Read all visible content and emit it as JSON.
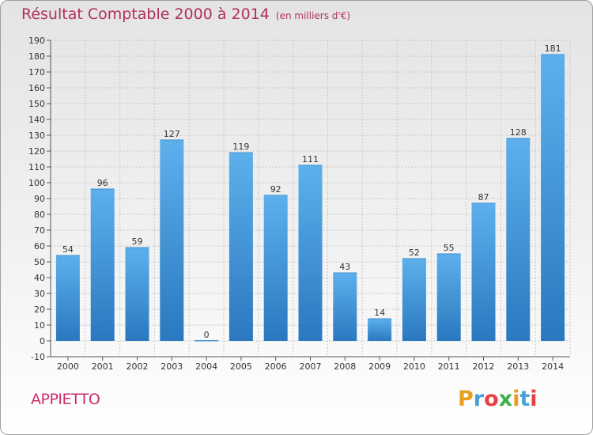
{
  "title": "Résultat Comptable 2000 à 2014",
  "subtitle": "(en milliers d'€)",
  "town": "APPIETTO",
  "logo": {
    "text": "Proxiti",
    "letters": [
      "P",
      "r",
      "o",
      "x",
      "i",
      "t",
      "i"
    ],
    "colors": [
      "#e8a020",
      "#4aa0d8",
      "#e84040",
      "#3ab04a",
      "#e8a020",
      "#4aa0d8",
      "#e84040"
    ]
  },
  "colors": {
    "bar": "#4a9fe0",
    "bar_dark": "#2a78bf",
    "title": "#b0305a",
    "grid": "#cccccc"
  },
  "chart_data": {
    "type": "bar",
    "categories": [
      "2000",
      "2001",
      "2002",
      "2003",
      "2004",
      "2005",
      "2006",
      "2007",
      "2008",
      "2009",
      "2010",
      "2011",
      "2012",
      "2013",
      "2014"
    ],
    "values": [
      54,
      96,
      59,
      127,
      0,
      119,
      92,
      111,
      43,
      14,
      52,
      55,
      87,
      128,
      181
    ],
    "ylim": [
      -10,
      190
    ],
    "yticks": [
      -10,
      0,
      10,
      20,
      30,
      40,
      50,
      60,
      70,
      80,
      90,
      100,
      110,
      120,
      130,
      140,
      150,
      160,
      170,
      180,
      190
    ],
    "grid": true,
    "data_labels": true
  }
}
